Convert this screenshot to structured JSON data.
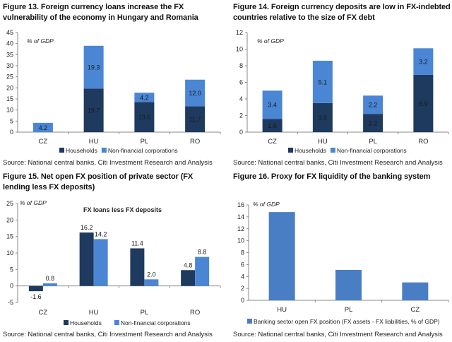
{
  "colors": {
    "households": "#1f3a5f",
    "corporations": "#4a86d4",
    "banking": "#4a7ec4",
    "axis": "#888888"
  },
  "figures": [
    {
      "title": "Figure 13. Foreign currency loans increase the FX vulnerability of the economy in Hungary and Romania",
      "source": "Source: National central banks, Citi Investment Research and Analysis"
    },
    {
      "title": "Figure 14. Foreign currency deposits are low in FX-indebted countries relative to the size of FX debt",
      "source": "Source: National central banks, Citi Investment Research and Analysis"
    },
    {
      "title": "Figure 15. Net open FX position of private sector (FX lending less FX deposits)",
      "source": "Source: National central banks, Citi Investment Research and Analysis"
    },
    {
      "title": "Figure 16. Proxy for FX liquidity of the banking system",
      "source": "Source: National central banks, Citi Investment Research and Analysis"
    }
  ],
  "chart_data": [
    {
      "type": "bar",
      "stacked": true,
      "title": "Figure 13. Foreign currency loans increase the FX vulnerability of the economy in Hungary and Romania",
      "ylabel": "% of GDP",
      "categories": [
        "CZ",
        "HU",
        "PL",
        "RO"
      ],
      "series": [
        {
          "name": "Households",
          "values": [
            0,
            19.7,
            13.6,
            11.7
          ],
          "labels": [
            "",
            "19.7",
            "13.6",
            "11.7"
          ]
        },
        {
          "name": "Non-financial corporations",
          "values": [
            4.2,
            19.3,
            4.2,
            12.0
          ],
          "labels": [
            "4.2",
            "19.3",
            "4.2",
            "12.0"
          ]
        }
      ],
      "ylim": [
        0,
        45
      ],
      "yticks": [
        0,
        5,
        10,
        15,
        20,
        25,
        30,
        35,
        40,
        45
      ],
      "grid": false,
      "legend": "bottom"
    },
    {
      "type": "bar",
      "stacked": true,
      "title": "Figure 14. Foreign currency deposits are low in FX-indebted countries relative to the size of FX debt",
      "ylabel": "% of GDP",
      "categories": [
        "CZ",
        "HU",
        "PL",
        "RO"
      ],
      "series": [
        {
          "name": "Households",
          "values": [
            1.6,
            3.5,
            2.2,
            6.9
          ],
          "labels": [
            "1.6",
            "3.5",
            "2.2",
            "6.9"
          ]
        },
        {
          "name": "Non-financial corporations",
          "values": [
            3.4,
            5.1,
            2.2,
            3.2
          ],
          "labels": [
            "3.4",
            "5.1",
            "2.2",
            "3.2"
          ]
        }
      ],
      "ylim": [
        0,
        12
      ],
      "yticks": [
        0,
        2,
        4,
        6,
        8,
        10,
        12
      ],
      "grid": false,
      "legend": "bottom"
    },
    {
      "type": "bar",
      "stacked": false,
      "title": "Figure 15. Net open FX position of private sector (FX lending less FX deposits)",
      "subtitle": "FX loans less FX deposits",
      "ylabel": "% of GDP",
      "categories": [
        "CZ",
        "HU",
        "PL",
        "RO"
      ],
      "series": [
        {
          "name": "Households",
          "values": [
            -1.6,
            16.2,
            11.4,
            4.8
          ],
          "labels": [
            "-1.6",
            "16.2",
            "11.4",
            "4.8"
          ]
        },
        {
          "name": "Non-financial corporations",
          "values": [
            0.8,
            14.2,
            2.0,
            8.8
          ],
          "labels": [
            "0.8",
            "14.2",
            "2.0",
            "8.8"
          ]
        }
      ],
      "ylim": [
        -5,
        25
      ],
      "yticks": [
        -5,
        0,
        5,
        10,
        15,
        20,
        25
      ],
      "grid": false,
      "legend": "bottom"
    },
    {
      "type": "bar",
      "stacked": false,
      "title": "Figure 16. Proxy for FX liquidity of the banking system",
      "ylabel": "% of GDP",
      "categories": [
        "HU",
        "PL",
        "CZ"
      ],
      "series": [
        {
          "name": "Banking sector open FX position (FX assets - FX liabilities, % of GDP)",
          "values": [
            14.8,
            5.1,
            3.0
          ],
          "labels": [
            "",
            "",
            ""
          ]
        }
      ],
      "ylim": [
        0,
        16
      ],
      "yticks": [
        0,
        2,
        4,
        6,
        8,
        10,
        12,
        14,
        16
      ],
      "grid": false,
      "legend": "bottom"
    }
  ]
}
